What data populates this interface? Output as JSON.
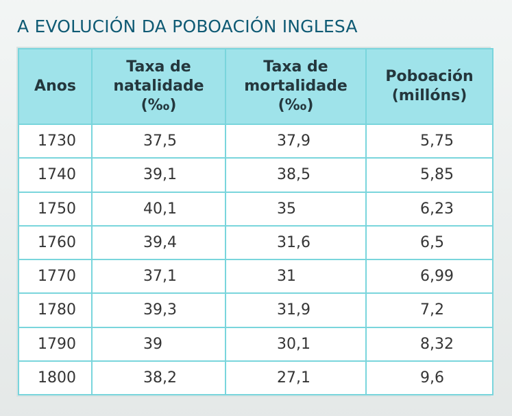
{
  "document": {
    "title": "A EVOLUCIÓN DA POBOACIÓN INGLESA"
  },
  "table": {
    "headers": {
      "anos": "Anos",
      "natalidade": [
        "Taxa de",
        "natalidade",
        "(‰)"
      ],
      "mortalidade": [
        "Taxa de",
        "mortalidade",
        "(‰)"
      ],
      "poboacion": [
        "Poboación",
        "(millóns)"
      ]
    },
    "rows": [
      [
        "1730",
        "37,5",
        "37,9",
        "5,75"
      ],
      [
        "1740",
        "39,1",
        "38,5",
        "5,85"
      ],
      [
        "1750",
        "40,1",
        "35",
        "6,23"
      ],
      [
        "1760",
        "39,4",
        "31,6",
        "6,5"
      ],
      [
        "1770",
        "37,1",
        "31",
        "6,99"
      ],
      [
        "1780",
        "39,3",
        "31,9",
        "7,2"
      ],
      [
        "1790",
        "39",
        "30,1",
        "8,32"
      ],
      [
        "1800",
        "38,2",
        "27,1",
        "9,6"
      ]
    ]
  },
  "colors": {
    "title": "#0f5a74",
    "header_background": "#9fe3ea",
    "grid": "#79d5dc"
  }
}
